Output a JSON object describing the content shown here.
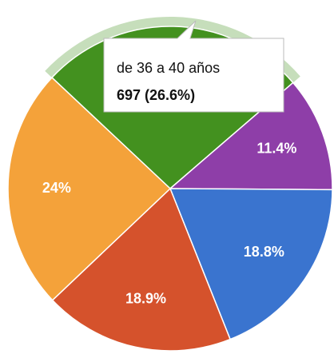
{
  "chart_data": {
    "type": "pie",
    "categories": [
      "de 36 a 40 años",
      null,
      null,
      null,
      null
    ],
    "values": [
      26.6,
      11.4,
      18.8,
      18.9,
      24
    ],
    "value_labels": [
      null,
      "11.4%",
      "18.8%",
      "18.9%",
      "24%"
    ],
    "colors": [
      "#43911f",
      "#8e3ea8",
      "#3a74cf",
      "#d5522c",
      "#f4a23a"
    ],
    "highlight": 0,
    "tooltip": {
      "title": "de 36 a 40 años",
      "text": "697 (26.6%)"
    }
  }
}
